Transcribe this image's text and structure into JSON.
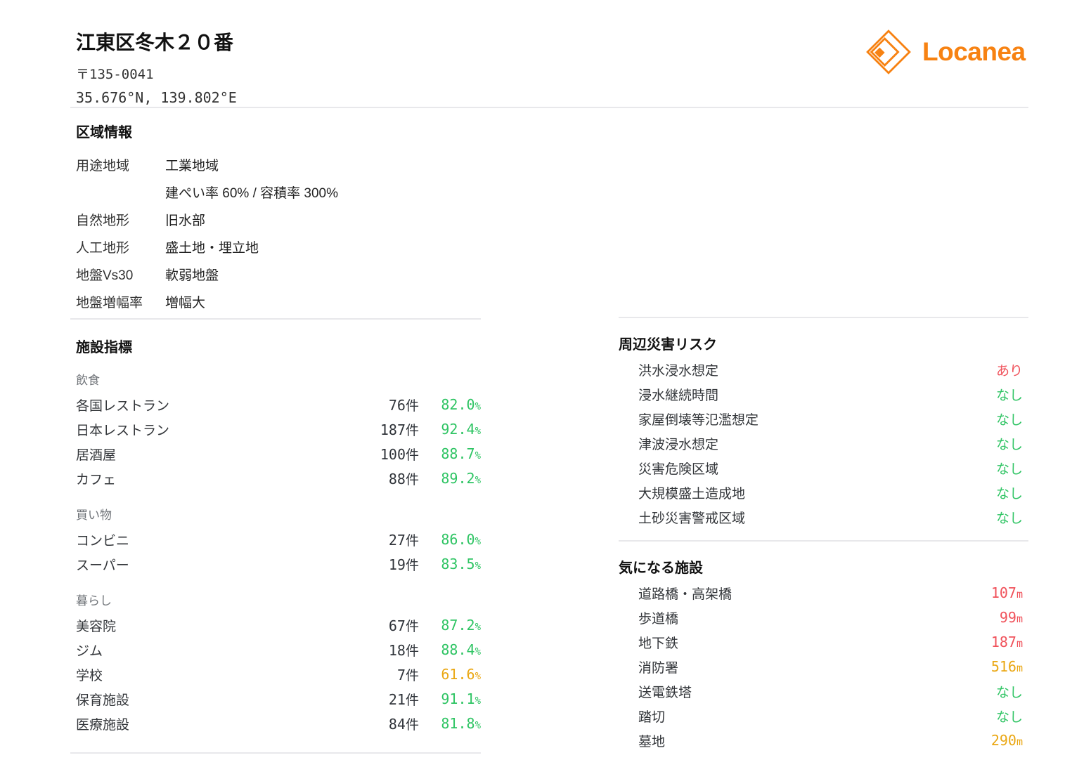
{
  "header": {
    "title": "江東区冬木２０番",
    "postal_code": "〒135-0041",
    "coordinates": "35.676°N, 139.802°E",
    "brand": {
      "name": "Locanea",
      "color": "#f78212"
    }
  },
  "colors": {
    "brand_orange": "#f78212",
    "green": "#2ec463",
    "amber": "#eaa713",
    "red": "#f0515a",
    "heading": "#111111",
    "text": "#333333",
    "muted": "#71757a",
    "divider": "#e8e8eb"
  },
  "area_info": {
    "title": "区域情報",
    "rows": [
      {
        "label": "用途地域",
        "value": "工業地域"
      },
      {
        "label": "",
        "value": "建ぺい率 60% / 容積率 300%"
      },
      {
        "label": "自然地形",
        "value": "旧水部"
      },
      {
        "label": "人工地形",
        "value": "盛土地・埋立地"
      },
      {
        "label": "地盤Vs30",
        "value": "軟弱地盤"
      },
      {
        "label": "地盤増幅率",
        "value": "増幅大"
      }
    ]
  },
  "facility_metrics": {
    "title": "施設指標",
    "count_unit": "件",
    "percent_unit": "%",
    "groups": [
      {
        "label": "飲食",
        "items": [
          {
            "label": "各国レストラン",
            "count": "76",
            "percent": "82.0",
            "status": "green"
          },
          {
            "label": "日本レストラン",
            "count": "187",
            "percent": "92.4",
            "status": "green"
          },
          {
            "label": "居酒屋",
            "count": "100",
            "percent": "88.7",
            "status": "green"
          },
          {
            "label": "カフェ",
            "count": "88",
            "percent": "89.2",
            "status": "green"
          }
        ]
      },
      {
        "label": "買い物",
        "items": [
          {
            "label": "コンビニ",
            "count": "27",
            "percent": "86.0",
            "status": "green"
          },
          {
            "label": "スーパー",
            "count": "19",
            "percent": "83.5",
            "status": "green"
          }
        ]
      },
      {
        "label": "暮らし",
        "items": [
          {
            "label": "美容院",
            "count": "67",
            "percent": "87.2",
            "status": "green"
          },
          {
            "label": "ジム",
            "count": "18",
            "percent": "88.4",
            "status": "green"
          },
          {
            "label": "学校",
            "count": "7",
            "percent": "61.6",
            "status": "amber"
          },
          {
            "label": "保育施設",
            "count": "21",
            "percent": "91.1",
            "status": "green"
          },
          {
            "label": "医療施設",
            "count": "84",
            "percent": "81.8",
            "status": "green"
          }
        ]
      }
    ]
  },
  "disaster_risk": {
    "title": "周辺災害リスク",
    "items": [
      {
        "label": "洪水浸水想定",
        "value": "あり",
        "unit": "",
        "status": "red"
      },
      {
        "label": "浸水継続時間",
        "value": "なし",
        "unit": "",
        "status": "green"
      },
      {
        "label": "家屋倒壊等氾濫想定",
        "value": "なし",
        "unit": "",
        "status": "green"
      },
      {
        "label": "津波浸水想定",
        "value": "なし",
        "unit": "",
        "status": "green"
      },
      {
        "label": "災害危険区域",
        "value": "なし",
        "unit": "",
        "status": "green"
      },
      {
        "label": "大規模盛土造成地",
        "value": "なし",
        "unit": "",
        "status": "green"
      },
      {
        "label": "土砂災害警戒区域",
        "value": "なし",
        "unit": "",
        "status": "green"
      }
    ]
  },
  "nearby_facilities": {
    "title": "気になる施設",
    "items": [
      {
        "label": "道路橋・高架橋",
        "value": "107",
        "unit": "m",
        "status": "red"
      },
      {
        "label": "歩道橋",
        "value": "99",
        "unit": "m",
        "status": "red"
      },
      {
        "label": "地下鉄",
        "value": "187",
        "unit": "m",
        "status": "red"
      },
      {
        "label": "消防署",
        "value": "516",
        "unit": "m",
        "status": "amber"
      },
      {
        "label": "送電鉄塔",
        "value": "なし",
        "unit": "",
        "status": "green"
      },
      {
        "label": "踏切",
        "value": "なし",
        "unit": "",
        "status": "green"
      },
      {
        "label": "墓地",
        "value": "290",
        "unit": "m",
        "status": "amber"
      }
    ]
  }
}
